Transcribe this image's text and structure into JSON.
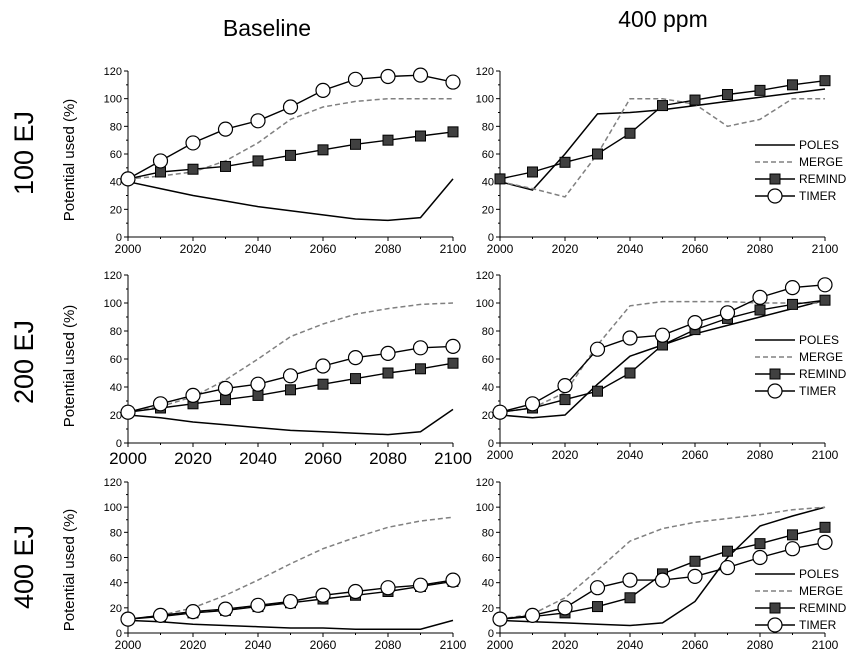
{
  "column_titles": [
    "Baseline",
    "400 ppm"
  ],
  "row_titles": [
    "100 EJ",
    "200 EJ",
    "400 EJ"
  ],
  "legend_labels": [
    "POLES",
    "MERGE",
    "REMIND",
    "TIMER"
  ],
  "colors": {
    "line": "#000000",
    "merge": "#808080",
    "remind_marker": "#404040",
    "timer_marker": "#ffffff"
  },
  "chart_data": [
    {
      "type": "line",
      "panel": "100 EJ - Baseline",
      "ylabel": "Potential used (%)",
      "xlim": [
        2000,
        2100
      ],
      "ylim": [
        0,
        120
      ],
      "x_ticks": [
        "2000",
        "2020",
        "2040",
        "2060",
        "2080",
        "2100"
      ],
      "y_ticks": [
        "0",
        "20",
        "40",
        "60",
        "80",
        "100",
        "120"
      ],
      "x": [
        2000,
        2010,
        2020,
        2030,
        2040,
        2050,
        2060,
        2070,
        2080,
        2090,
        2100
      ],
      "series": [
        {
          "name": "POLES",
          "values": [
            40,
            35,
            30,
            26,
            22,
            19,
            16,
            13,
            12,
            14,
            42
          ]
        },
        {
          "name": "MERGE",
          "values": [
            42,
            44,
            47,
            55,
            68,
            85,
            94,
            98,
            100,
            100,
            100
          ]
        },
        {
          "name": "REMIND",
          "values": [
            42,
            47,
            49,
            51,
            55,
            59,
            63,
            67,
            70,
            73,
            76
          ]
        },
        {
          "name": "TIMER",
          "values": [
            42,
            55,
            68,
            78,
            84,
            94,
            106,
            114,
            116,
            117,
            112
          ]
        }
      ]
    },
    {
      "type": "line",
      "panel": "100 EJ - 400 ppm",
      "ylabel": "",
      "xlim": [
        2000,
        2100
      ],
      "ylim": [
        0,
        120
      ],
      "x_ticks": [
        "2000",
        "2020",
        "2040",
        "2060",
        "2080",
        "2100"
      ],
      "y_ticks": [
        "0",
        "20",
        "40",
        "60",
        "80",
        "100",
        "120"
      ],
      "x": [
        2000,
        2010,
        2020,
        2030,
        2040,
        2050,
        2060,
        2070,
        2080,
        2090,
        2100
      ],
      "series": [
        {
          "name": "POLES",
          "values": [
            40,
            34,
            60,
            89,
            90,
            92,
            95,
            98,
            101,
            104,
            107
          ]
        },
        {
          "name": "MERGE",
          "values": [
            40,
            35,
            29,
            60,
            100,
            100,
            96,
            80,
            85,
            100,
            100
          ]
        },
        {
          "name": "REMIND",
          "values": [
            42,
            47,
            54,
            60,
            75,
            95,
            99,
            103,
            106,
            110,
            113
          ]
        }
      ]
    },
    {
      "type": "line",
      "panel": "200 EJ - Baseline",
      "ylabel": "Potential used (%)",
      "xlim": [
        2000,
        2100
      ],
      "ylim": [
        0,
        120
      ],
      "x_ticks": [
        "2000",
        "2020",
        "2040",
        "2060",
        "2080",
        "2100"
      ],
      "y_ticks": [
        "0",
        "20",
        "40",
        "60",
        "80",
        "100",
        "120"
      ],
      "x": [
        2000,
        2010,
        2020,
        2030,
        2040,
        2050,
        2060,
        2070,
        2080,
        2090,
        2100
      ],
      "series": [
        {
          "name": "POLES",
          "values": [
            20,
            18,
            15,
            13,
            11,
            9,
            8,
            7,
            6,
            8,
            24
          ]
        },
        {
          "name": "MERGE",
          "values": [
            22,
            26,
            33,
            45,
            60,
            76,
            85,
            92,
            96,
            99,
            100
          ]
        },
        {
          "name": "REMIND",
          "values": [
            22,
            25,
            28,
            31,
            34,
            38,
            42,
            46,
            50,
            53,
            57
          ]
        },
        {
          "name": "TIMER",
          "values": [
            22,
            28,
            34,
            39,
            42,
            48,
            55,
            61,
            64,
            68,
            69
          ]
        }
      ]
    },
    {
      "type": "line",
      "panel": "200 EJ - 400 ppm",
      "ylabel": "",
      "xlim": [
        2000,
        2100
      ],
      "ylim": [
        0,
        120
      ],
      "x_ticks": [
        "2000",
        "2020",
        "2040",
        "2060",
        "2080",
        "2100"
      ],
      "y_ticks": [
        "0",
        "20",
        "40",
        "60",
        "80",
        "100",
        "120"
      ],
      "x": [
        2000,
        2010,
        2020,
        2030,
        2040,
        2050,
        2060,
        2070,
        2080,
        2090,
        2100
      ],
      "series": [
        {
          "name": "POLES",
          "values": [
            20,
            18,
            20,
            42,
            62,
            70,
            78,
            84,
            90,
            96,
            102
          ]
        },
        {
          "name": "MERGE",
          "values": [
            22,
            25,
            36,
            70,
            98,
            101,
            101,
            101,
            100,
            100,
            100
          ]
        },
        {
          "name": "REMIND",
          "values": [
            22,
            25,
            31,
            37,
            50,
            70,
            81,
            89,
            95,
            99,
            102
          ]
        },
        {
          "name": "TIMER",
          "values": [
            22,
            28,
            41,
            67,
            75,
            77,
            86,
            93,
            104,
            111,
            113
          ]
        }
      ]
    },
    {
      "type": "line",
      "panel": "400 EJ - Baseline",
      "ylabel": "Potential used (%)",
      "xlim": [
        2000,
        2100
      ],
      "ylim": [
        0,
        120
      ],
      "x_ticks": [
        "2000",
        "2020",
        "2040",
        "2060",
        "2080",
        "2100"
      ],
      "y_ticks": [
        "0",
        "20",
        "40",
        "60",
        "80",
        "100",
        "120"
      ],
      "x": [
        2000,
        2010,
        2020,
        2030,
        2040,
        2050,
        2060,
        2070,
        2080,
        2090,
        2100
      ],
      "series": [
        {
          "name": "POLES",
          "values": [
            10,
            9,
            7,
            6,
            5,
            4,
            4,
            3,
            3,
            3,
            10
          ]
        },
        {
          "name": "MERGE",
          "values": [
            11,
            14,
            20,
            30,
            42,
            55,
            67,
            76,
            84,
            89,
            92
          ]
        },
        {
          "name": "REMIND",
          "values": [
            11,
            13,
            16,
            18,
            21,
            24,
            27,
            30,
            33,
            37,
            41
          ]
        },
        {
          "name": "TIMER",
          "values": [
            11,
            14,
            17,
            19,
            22,
            25,
            30,
            33,
            36,
            38,
            42
          ]
        }
      ]
    },
    {
      "type": "line",
      "panel": "400 EJ - 400 ppm",
      "ylabel": "",
      "xlim": [
        2000,
        2100
      ],
      "ylim": [
        0,
        120
      ],
      "x_ticks": [
        "2000",
        "2020",
        "2040",
        "2060",
        "2080",
        "2100"
      ],
      "y_ticks": [
        "0",
        "20",
        "40",
        "60",
        "80",
        "100",
        "120"
      ],
      "x": [
        2000,
        2010,
        2020,
        2030,
        2040,
        2050,
        2060,
        2070,
        2080,
        2090,
        2100
      ],
      "series": [
        {
          "name": "POLES",
          "values": [
            10,
            9,
            8,
            7,
            6,
            8,
            25,
            60,
            85,
            93,
            100
          ]
        },
        {
          "name": "MERGE",
          "values": [
            11,
            15,
            28,
            50,
            73,
            83,
            88,
            91,
            94,
            98,
            100
          ]
        },
        {
          "name": "REMIND",
          "values": [
            11,
            13,
            16,
            21,
            28,
            47,
            57,
            65,
            71,
            78,
            84
          ]
        },
        {
          "name": "TIMER",
          "values": [
            11,
            14,
            20,
            36,
            42,
            42,
            45,
            52,
            60,
            67,
            72
          ]
        }
      ]
    }
  ]
}
